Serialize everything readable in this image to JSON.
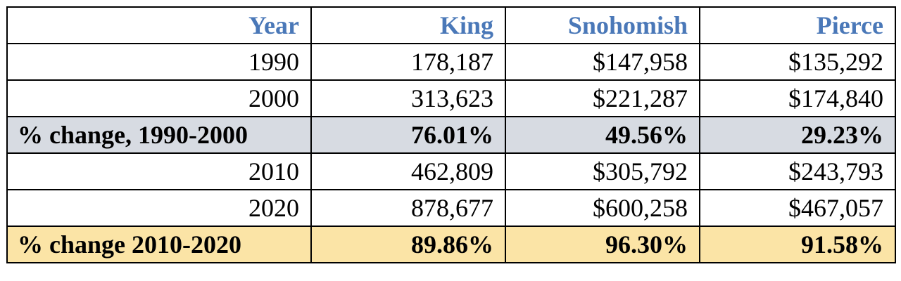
{
  "table": {
    "headers": [
      "Year",
      "King",
      "Snohomish",
      "Pierce"
    ],
    "rows": [
      {
        "type": "data",
        "cells": [
          "1990",
          "178,187",
          "$147,958",
          "$135,292"
        ]
      },
      {
        "type": "data",
        "cells": [
          "2000",
          "313,623",
          "$221,287",
          "$174,840"
        ]
      },
      {
        "type": "summary",
        "cells": [
          "% change, 1990-2000",
          "76.01%",
          "49.56%",
          "29.23%"
        ]
      },
      {
        "type": "data",
        "cells": [
          "2010",
          "462,809",
          "$305,792",
          "$243,793"
        ]
      },
      {
        "type": "data",
        "cells": [
          "2020",
          "878,677",
          "$600,258",
          "$467,057"
        ]
      },
      {
        "type": "summary",
        "cells": [
          "% change 2010-2020",
          "89.86%",
          "96.30%",
          "91.58%"
        ]
      }
    ]
  },
  "colors": {
    "header_text": "#4a78b8",
    "summary_1990_2000_bg": "#d7dbe2",
    "summary_2010_2020_bg": "#fbe4a6",
    "border": "#000000"
  }
}
